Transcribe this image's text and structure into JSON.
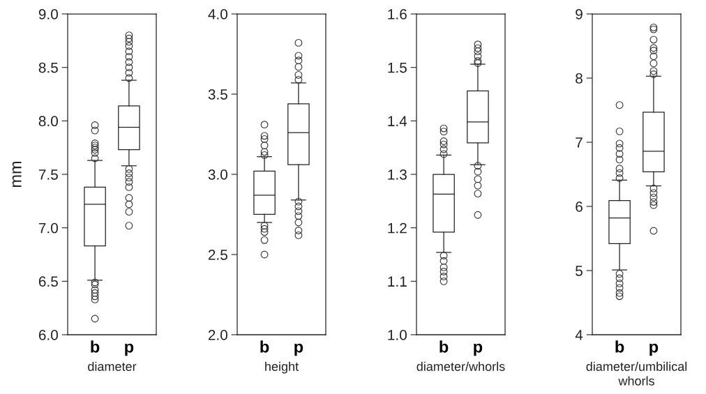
{
  "chart_data": [
    {
      "type": "box",
      "categories": [
        "b",
        "p"
      ],
      "xlabel": "diameter",
      "ylabel": "mm",
      "ylim": [
        6.0,
        9.0
      ],
      "yticks": [
        {
          "value": 6.0,
          "label": "6.0"
        },
        {
          "value": 6.5,
          "label": "6.5"
        },
        {
          "value": 7.0,
          "label": "7.0"
        },
        {
          "value": 7.5,
          "label": "7.5"
        },
        {
          "value": 8.0,
          "label": "8.0"
        },
        {
          "value": 8.5,
          "label": "8.5"
        },
        {
          "value": 9.0,
          "label": "9.0"
        }
      ],
      "grid": false,
      "legend": false,
      "boxes": [
        {
          "low": 6.51,
          "q1": 6.83,
          "median": 7.22,
          "q3": 7.38,
          "high": 7.63,
          "outliers": [
            7.96,
            7.91,
            7.79,
            7.77,
            7.75,
            7.73,
            7.7,
            7.65,
            6.49,
            6.47,
            6.42,
            6.39,
            6.36,
            6.33,
            6.15
          ]
        },
        {
          "low": 7.58,
          "q1": 7.73,
          "median": 7.94,
          "q3": 8.14,
          "high": 8.38,
          "outliers": [
            8.8,
            8.77,
            8.74,
            8.7,
            8.65,
            8.6,
            8.55,
            8.5,
            8.45,
            8.4,
            7.55,
            7.51,
            7.47,
            7.43,
            7.38,
            7.28,
            7.22,
            7.15,
            7.02
          ]
        }
      ]
    },
    {
      "type": "box",
      "categories": [
        "b",
        "p"
      ],
      "xlabel": "height",
      "ylim": [
        2.0,
        4.0
      ],
      "yticks": [
        {
          "value": 2.0,
          "label": "2.0"
        },
        {
          "value": 2.5,
          "label": "2.5"
        },
        {
          "value": 3.0,
          "label": "3.0"
        },
        {
          "value": 3.5,
          "label": "3.5"
        },
        {
          "value": 4.0,
          "label": "4.0"
        }
      ],
      "grid": false,
      "legend": false,
      "boxes": [
        {
          "low": 2.7,
          "q1": 2.75,
          "median": 2.87,
          "q3": 3.02,
          "high": 3.11,
          "outliers": [
            3.31,
            3.24,
            3.22,
            3.18,
            3.14,
            3.12,
            2.68,
            2.66,
            2.64,
            2.59,
            2.5
          ]
        },
        {
          "low": 2.84,
          "q1": 3.06,
          "median": 3.26,
          "q3": 3.44,
          "high": 3.57,
          "outliers": [
            3.82,
            3.74,
            3.71,
            3.67,
            3.62,
            3.59,
            2.83,
            2.8,
            2.77,
            2.74,
            2.7,
            2.65,
            2.62
          ]
        }
      ]
    },
    {
      "type": "box",
      "categories": [
        "b",
        "p"
      ],
      "xlabel": "diameter/whorls",
      "ylim": [
        1.0,
        1.6
      ],
      "yticks": [
        {
          "value": 1.0,
          "label": "1.0"
        },
        1.1,
        1.2,
        1.3,
        1.4,
        1.5,
        1.6
      ],
      "grid": false,
      "legend": false,
      "boxes": [
        {
          "low": 1.154,
          "q1": 1.192,
          "median": 1.263,
          "q3": 1.3,
          "high": 1.336,
          "outliers": [
            1.386,
            1.38,
            1.362,
            1.356,
            1.347,
            1.338,
            1.148,
            1.138,
            1.126,
            1.118,
            1.109,
            1.1
          ]
        },
        {
          "low": 1.318,
          "q1": 1.359,
          "median": 1.398,
          "q3": 1.456,
          "high": 1.506,
          "outliers": [
            1.543,
            1.536,
            1.53,
            1.521,
            1.512,
            1.508,
            1.316,
            1.305,
            1.291,
            1.279,
            1.264,
            1.224
          ]
        }
      ]
    },
    {
      "type": "box",
      "categories": [
        "b",
        "p"
      ],
      "xlabel": "diameter/umbilical\nwhorls",
      "ylim": [
        4,
        9
      ],
      "yticks": [
        4,
        5,
        6,
        7,
        8,
        9
      ],
      "grid": false,
      "legend": false,
      "boxes": [
        {
          "low": 5.01,
          "q1": 5.42,
          "median": 5.82,
          "q3": 6.09,
          "high": 6.41,
          "outliers": [
            7.58,
            7.17,
            6.98,
            6.91,
            6.82,
            6.73,
            6.59,
            6.52,
            6.44,
            4.95,
            4.88,
            4.8,
            4.73,
            4.65,
            4.6
          ]
        },
        {
          "low": 6.32,
          "q1": 6.54,
          "median": 6.86,
          "q3": 7.47,
          "high": 8.03,
          "outliers": [
            8.79,
            8.76,
            8.6,
            8.47,
            8.43,
            8.34,
            8.23,
            8.11,
            8.06,
            6.28,
            6.21,
            6.14,
            6.07,
            6.02,
            5.62
          ]
        }
      ]
    }
  ]
}
